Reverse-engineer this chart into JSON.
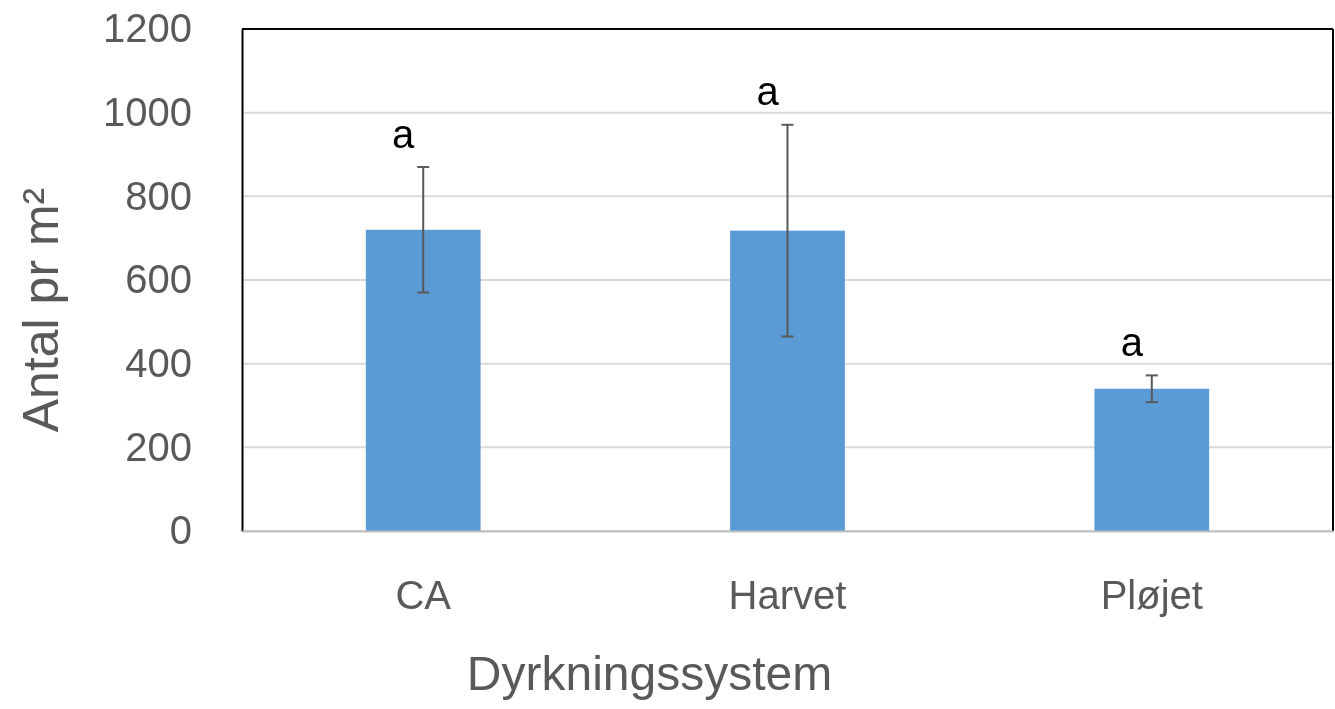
{
  "chart_data": {
    "type": "bar",
    "categories": [
      "CA",
      "Harvet",
      "Pløjet"
    ],
    "values": [
      720,
      718,
      340
    ],
    "errors": [
      150,
      253,
      32
    ],
    "color": "#5b9bd5",
    "xlabel": "Dyrkningssystem",
    "ylabel": "Antal pr m²",
    "ylim": [
      0,
      1200
    ],
    "yticks": [
      0,
      200,
      400,
      600,
      800,
      1000,
      1200
    ],
    "grid": "y",
    "annotations": [
      "a",
      "a",
      "a"
    ]
  }
}
